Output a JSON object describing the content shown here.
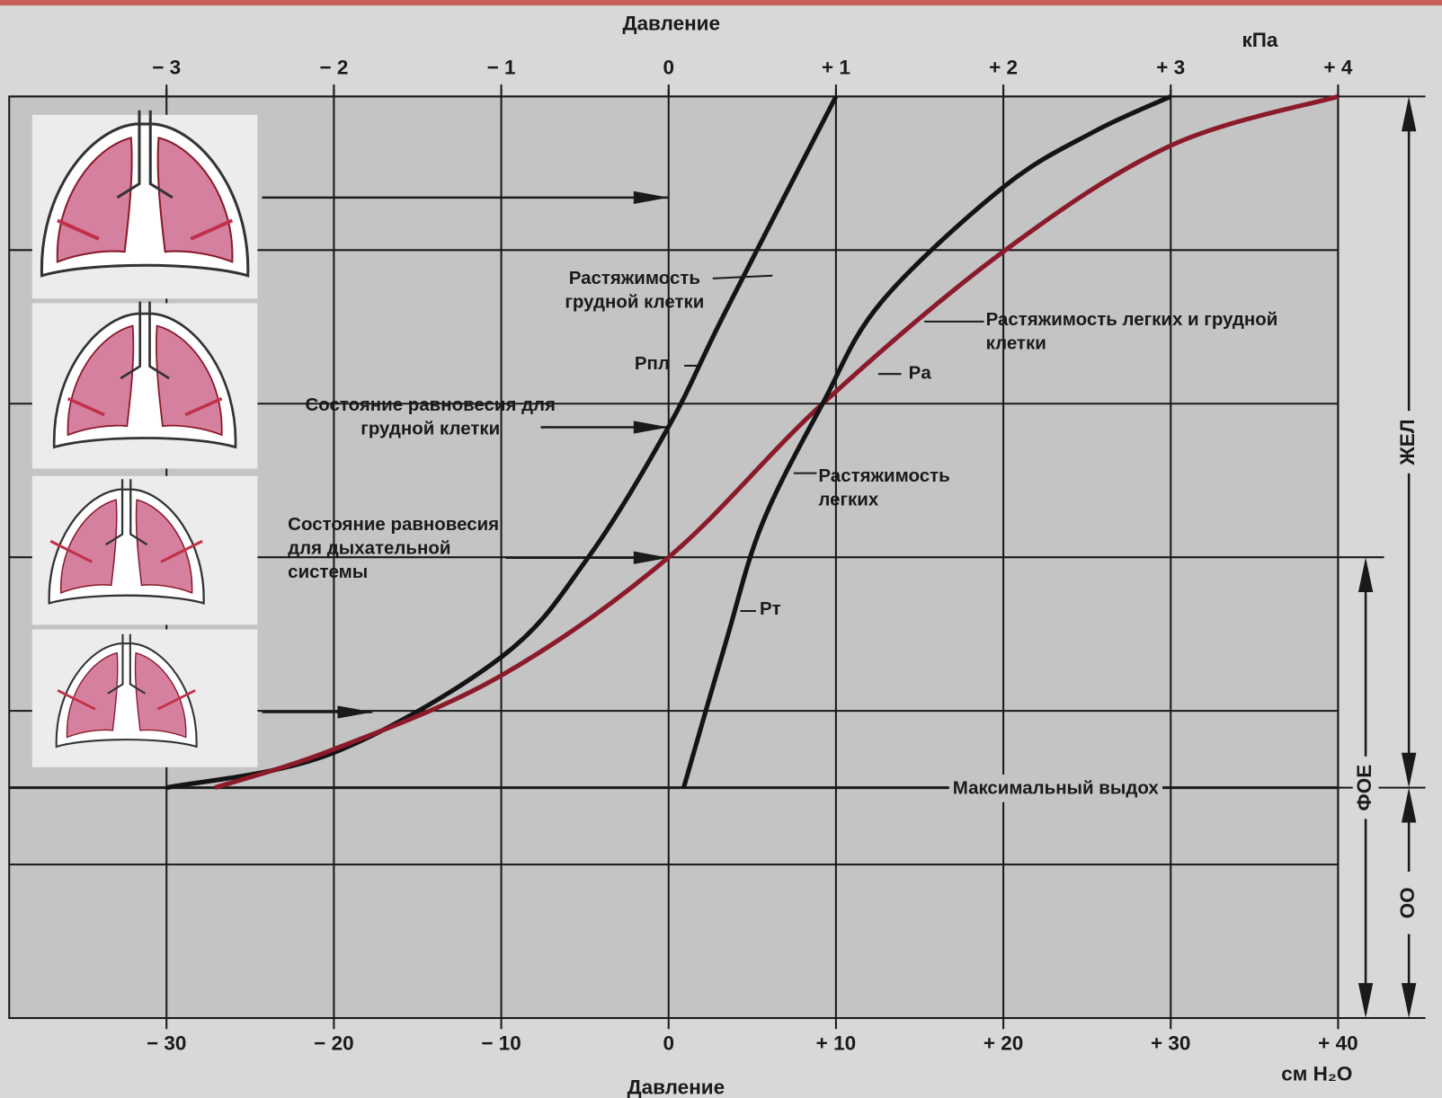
{
  "chart_data": {
    "type": "line",
    "x_label": "Давление",
    "x_unit": "см H₂O",
    "x2_label": "Давление",
    "x2_unit": "кПа",
    "xlim": [
      -39.4,
      40
    ],
    "xticks": [
      {
        "value": -30,
        "label": "− 30"
      },
      {
        "value": -20,
        "label": "− 20"
      },
      {
        "value": -10,
        "label": "− 10"
      },
      0,
      {
        "value": 10,
        "label": "+ 10"
      },
      {
        "value": 20,
        "label": "+ 20"
      },
      {
        "value": 30,
        "label": "+ 30"
      },
      {
        "value": 40,
        "label": "+ 40"
      }
    ],
    "x2lim": [
      -3.94,
      4
    ],
    "x2ticks": [
      {
        "value": -3,
        "label": "− 3"
      },
      {
        "value": -2,
        "label": "− 2"
      },
      {
        "value": -1,
        "label": "− 1"
      },
      0,
      {
        "value": 1,
        "label": "+ 1"
      },
      {
        "value": 2,
        "label": "+ 2"
      },
      {
        "value": 3,
        "label": "+ 3"
      },
      {
        "value": 4,
        "label": "+ 4"
      }
    ],
    "ylim": [
      0,
      6
    ],
    "yticks": [
      0,
      1,
      2,
      3,
      4,
      5,
      6
    ],
    "grid": true,
    "series": [
      {
        "name": "Растяжимость грудной клетки",
        "color": "#141414",
        "x": [
          -30,
          -20.2,
          -10,
          -4.8,
          0,
          3.4,
          10
        ],
        "values": [
          1.5,
          1.72,
          2.35,
          3.0,
          3.85,
          4.6,
          6.0
        ]
      },
      {
        "name": "Растяжимость легких и грудной клетки",
        "color": "#8b1a2a",
        "x": [
          -27.1,
          -20,
          -10,
          0,
          9.2,
          20,
          30,
          40
        ],
        "values": [
          1.5,
          1.75,
          2.23,
          3.0,
          4.0,
          4.99,
          5.68,
          6.0
        ]
      },
      {
        "name": "Растяжимость легких",
        "color": "#141414",
        "x": [
          0.9,
          3.4,
          5.6,
          9.2,
          12.7,
          20,
          25.4,
          30
        ],
        "values": [
          1.5,
          2.44,
          3.22,
          4.0,
          4.66,
          5.41,
          5.77,
          6.0
        ]
      }
    ],
    "hline": {
      "value": 1.5,
      "label": "Максимальный выдох"
    },
    "annotations": [
      "Состояние равновесия для грудной клетки",
      "Состояние равновесия для дыхательной системы",
      "Pпл",
      "Pа",
      "Pт"
    ],
    "volumes": [
      "ЖЕЛ",
      "ФОЕ",
      "ОО"
    ]
  }
}
